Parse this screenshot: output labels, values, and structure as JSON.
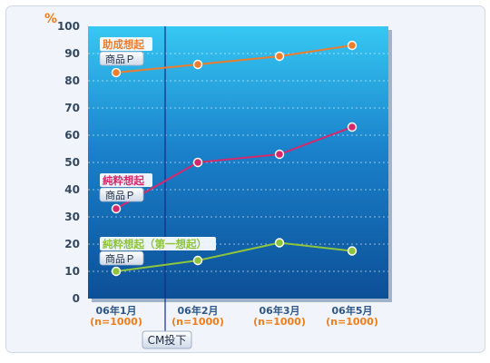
{
  "chart_data": {
    "type": "line",
    "y_unit": "%",
    "categories": [
      "06年1月",
      "06年2月",
      "06年3月",
      "06年5月"
    ],
    "sample_sizes": [
      "(n=1000)",
      "(n=1000)",
      "(n=1000)",
      "(n=1000)"
    ],
    "ylim": [
      0,
      100
    ],
    "yticks": [
      0,
      10,
      20,
      30,
      40,
      50,
      60,
      70,
      80,
      90,
      100
    ],
    "grid": true,
    "series": [
      {
        "name": "助成想起",
        "sub": "商品Ｐ",
        "color": "#ec7d2c",
        "values": [
          83,
          86,
          89,
          93
        ]
      },
      {
        "name": "純粋想起",
        "sub": "商品Ｐ",
        "color": "#d42a6c",
        "values": [
          33,
          50,
          53,
          63
        ]
      },
      {
        "name": "純粋想起（第一想起）",
        "sub": "商品Ｐ",
        "color": "#8ec43b",
        "values": [
          10,
          14,
          20.5,
          17.5
        ]
      }
    ],
    "annotation": "CM投下"
  }
}
